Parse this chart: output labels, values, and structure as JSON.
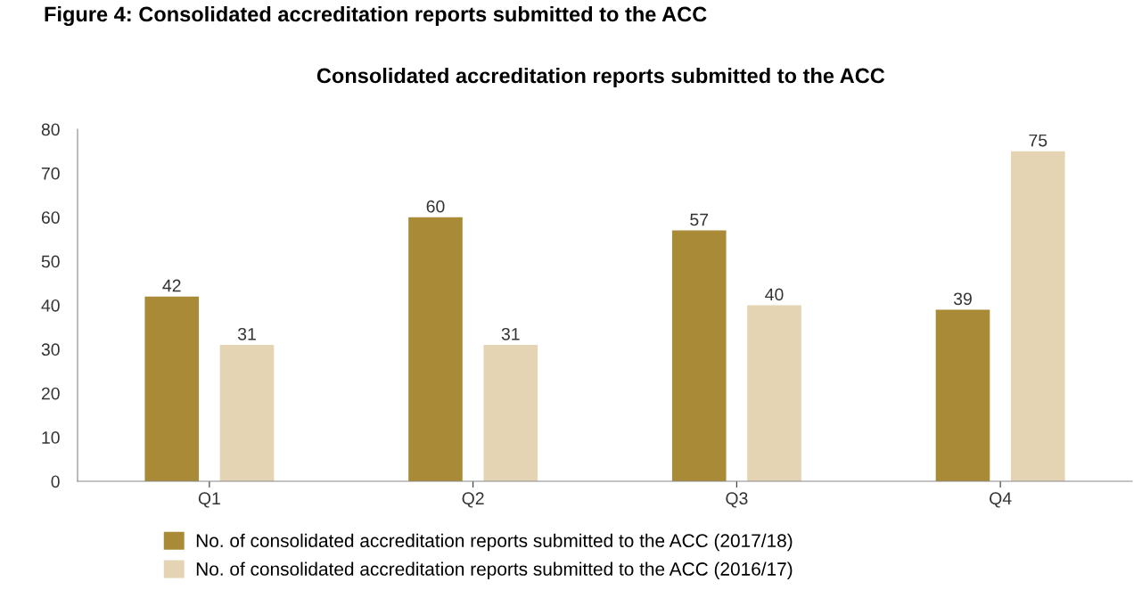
{
  "chart_data": {
    "type": "bar",
    "title": "Figure 4: Consolidated accreditation reports submitted to the ACC",
    "subtitle": "Consolidated accreditation reports submitted to the ACC",
    "categories": [
      "Q1",
      "Q2",
      "Q3",
      "Q4"
    ],
    "series": [
      {
        "name": "No. of consolidated accreditation reports submitted to the ACC (2017/18)",
        "color": "#a98a37",
        "values": [
          42,
          60,
          57,
          39
        ]
      },
      {
        "name": "No. of consolidated accreditation reports submitted to the ACC (2016/17)",
        "color": "#e4d4b4",
        "values": [
          31,
          31,
          40,
          75
        ]
      }
    ],
    "ylim": [
      0,
      80
    ],
    "yticks": [
      0,
      10,
      20,
      30,
      40,
      50,
      60,
      70,
      80
    ],
    "grid": false,
    "legend": "bottom",
    "data_labels": true
  }
}
